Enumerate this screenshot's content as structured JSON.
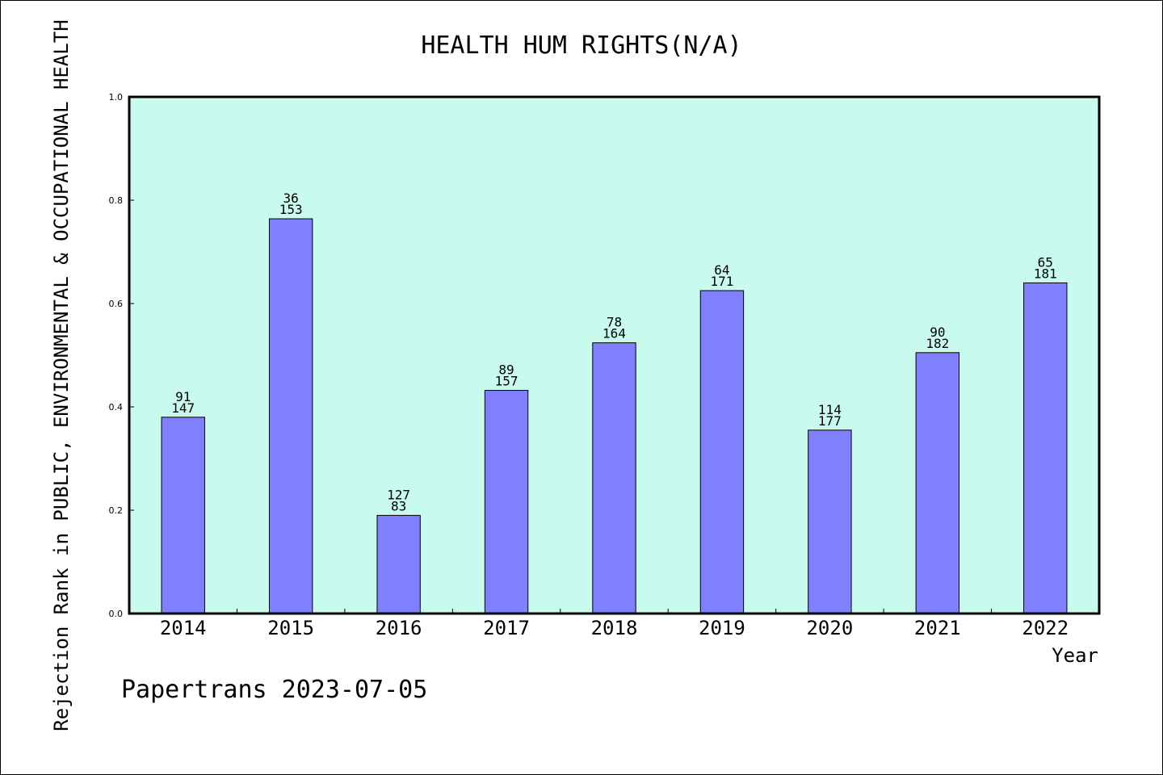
{
  "chart_data": {
    "type": "bar",
    "title": "HEALTH HUM RIGHTS(N/A)",
    "xlabel": "Year",
    "ylabel": "Rejection Rank in PUBLIC, ENVIRONMENTAL & OCCUPATIONAL HEALTH",
    "ylim": [
      0.0,
      1.0
    ],
    "yticks": [
      "0.0",
      "0.2",
      "0.4",
      "0.6",
      "0.8",
      "1.0"
    ],
    "categories": [
      "2014",
      "2015",
      "2016",
      "2017",
      "2018",
      "2019",
      "2020",
      "2021",
      "2022"
    ],
    "values": [
      0.38,
      0.764,
      0.19,
      0.432,
      0.524,
      0.625,
      0.355,
      0.505,
      0.64
    ],
    "labels_top": [
      "91",
      "36",
      "127",
      "89",
      "78",
      "64",
      "114",
      "90",
      "65"
    ],
    "labels_bottom": [
      "147",
      "153",
      "83",
      "157",
      "164",
      "171",
      "177",
      "182",
      "181"
    ],
    "grid": false,
    "colors": {
      "plot_background": "#c8fbee",
      "bar_fill": "#8080ff",
      "bar_stroke": "#000000"
    }
  },
  "footer": {
    "credit": "Papertrans 2023-07-05"
  }
}
